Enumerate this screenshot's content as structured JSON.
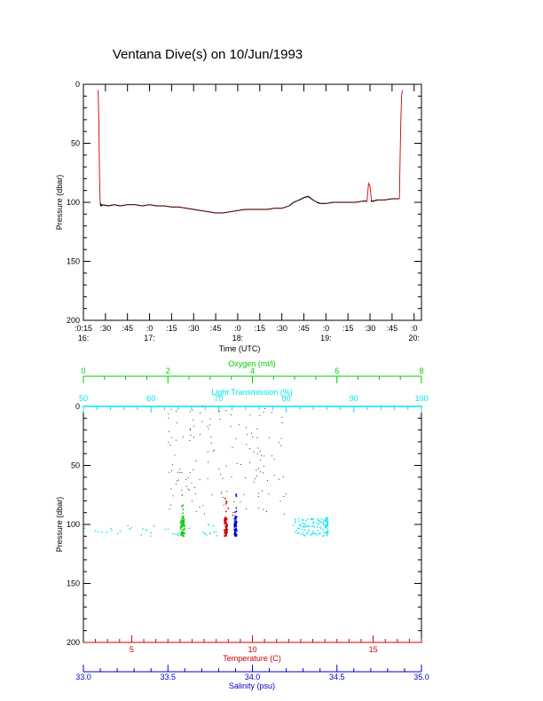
{
  "page_title": "Ventana Dive(s) on 10/Jun/1993",
  "colors": {
    "axis": "#000000",
    "pressure_trace": "#cc0000",
    "temperature": "#cc0000",
    "salinity": "#0000cc",
    "oxygen": "#00cc00",
    "light_transmission": "#00e5ee",
    "density_dots": "#000000"
  },
  "chart_data": [
    {
      "type": "line",
      "ylabel": "Pressure (dbar)",
      "xlabel": "Time (UTC)",
      "ylim": [
        200,
        0
      ],
      "y_ticks": [
        "0",
        "50",
        "100",
        "150",
        "200"
      ],
      "xlim_minutes": [
        975,
        1205
      ],
      "x_ticks": [
        {
          "t": 975,
          "label": ":0:15",
          "hour": "16:"
        },
        {
          "t": 990,
          "label": ":30",
          "hour": ""
        },
        {
          "t": 1005,
          "label": ":45",
          "hour": ""
        },
        {
          "t": 1020,
          "label": ":0",
          "hour": "17:"
        },
        {
          "t": 1035,
          "label": ":15",
          "hour": ""
        },
        {
          "t": 1050,
          "label": ":30",
          "hour": ""
        },
        {
          "t": 1065,
          "label": ":45",
          "hour": ""
        },
        {
          "t": 1080,
          "label": ":0",
          "hour": "18:"
        },
        {
          "t": 1095,
          "label": ":15",
          "hour": ""
        },
        {
          "t": 1110,
          "label": ":30",
          "hour": ""
        },
        {
          "t": 1125,
          "label": ":45",
          "hour": ""
        },
        {
          "t": 1140,
          "label": ":0",
          "hour": "19:"
        },
        {
          "t": 1155,
          "label": ":15",
          "hour": ""
        },
        {
          "t": 1170,
          "label": ":30",
          "hour": ""
        },
        {
          "t": 1185,
          "label": ":45",
          "hour": ""
        },
        {
          "t": 1200,
          "label": ":0",
          "hour": "20:"
        }
      ],
      "series": [
        {
          "x": [
            985,
            985.5,
            986,
            986.5,
            987,
            988,
            992,
            996,
            1000,
            1005,
            1010,
            1015,
            1020,
            1025,
            1030,
            1035,
            1040,
            1045,
            1050,
            1055,
            1060,
            1065,
            1070,
            1075,
            1080,
            1085,
            1090,
            1095,
            1100,
            1105,
            1110,
            1115,
            1118,
            1122,
            1125,
            1128,
            1130,
            1134,
            1136,
            1140,
            1145,
            1150,
            1155,
            1160,
            1165,
            1168,
            1169,
            1170,
            1171,
            1172,
            1175,
            1180,
            1185,
            1190,
            1190.5,
            1191,
            1191.5,
            1192
          ],
          "y": [
            5,
            30,
            80,
            101,
            103,
            102,
            103,
            102,
            103,
            102,
            102,
            103,
            102,
            103,
            103,
            104,
            104,
            105,
            106,
            107,
            108,
            109,
            109,
            108,
            107,
            106,
            106,
            106,
            106,
            105,
            105,
            103,
            100,
            98,
            96,
            95,
            97,
            100,
            101,
            101,
            100,
            100,
            100,
            100,
            99,
            99,
            84,
            86,
            99,
            99,
            98,
            98,
            97,
            97,
            60,
            30,
            10,
            5
          ]
        }
      ]
    },
    {
      "type": "scatter",
      "ylabel": "Pressure (dbar)",
      "ylim": [
        200,
        0
      ],
      "y_ticks": [
        "0",
        "50",
        "100",
        "150",
        "200"
      ],
      "axes": {
        "oxygen": {
          "label": "Oxygen (ml/l)",
          "range": [
            0,
            8
          ],
          "ticks": [
            "0",
            "2",
            "4",
            "6",
            "8"
          ]
        },
        "light_transmission": {
          "label": "Light Transmission (%)",
          "range": [
            50,
            100
          ],
          "ticks": [
            "50",
            "60",
            "70",
            "80",
            "90",
            "100"
          ]
        },
        "temperature": {
          "label": "Temperature (C)",
          "range": [
            3.0,
            17.0
          ],
          "ticks": [
            "5",
            "10",
            "15"
          ]
        },
        "salinity": {
          "label": "Salinity (psu)",
          "range": [
            33.0,
            35.0
          ],
          "ticks": [
            "33.0",
            "33.5",
            "34.0",
            "34.5",
            "35.0"
          ]
        }
      },
      "series": [
        {
          "name": "Oxygen",
          "clusters": [
            {
              "x_center": 2.35,
              "x_spread": 0.05,
              "p_min": 93,
              "p_max": 110,
              "n": 60
            },
            {
              "x_center": 2.35,
              "x_spread": 0.03,
              "p_min": 75,
              "p_max": 93,
              "n": 5
            }
          ]
        },
        {
          "name": "Salinity",
          "clusters": [
            {
              "x_center": 33.9,
              "x_spread": 0.008,
              "p_min": 93,
              "p_max": 110,
              "n": 60
            },
            {
              "x_center": 33.9,
              "x_spread": 0.008,
              "p_min": 70,
              "p_max": 93,
              "n": 6
            }
          ]
        },
        {
          "name": "Temperature",
          "clusters": [
            {
              "x_center": 8.9,
              "x_spread": 0.06,
              "p_min": 94,
              "p_max": 110,
              "n": 60
            },
            {
              "x_center": 8.95,
              "x_spread": 0.08,
              "p_min": 72,
              "p_max": 94,
              "n": 6
            }
          ]
        },
        {
          "name": "Light Transmission",
          "clusters": [
            {
              "x_center": 83.5,
              "x_spread": 2.5,
              "p_min": 95,
              "p_max": 110,
              "n": 90
            },
            {
              "x_center": 60,
              "x_spread": 10,
              "p_min": 100,
              "p_max": 110,
              "n": 40
            },
            {
              "x_center": 86,
              "x_spread": 0.2,
              "p_min": 94,
              "p_max": 110,
              "n": 30
            }
          ]
        },
        {
          "name": "Profile dots",
          "clusters": [
            {
              "x_center": 66,
              "x_spread": 3.5,
              "p_min": 0,
              "p_max": 95,
              "n": 70
            },
            {
              "x_center": 75,
              "x_spread": 5,
              "p_min": 0,
              "p_max": 95,
              "n": 80
            }
          ]
        }
      ]
    }
  ]
}
